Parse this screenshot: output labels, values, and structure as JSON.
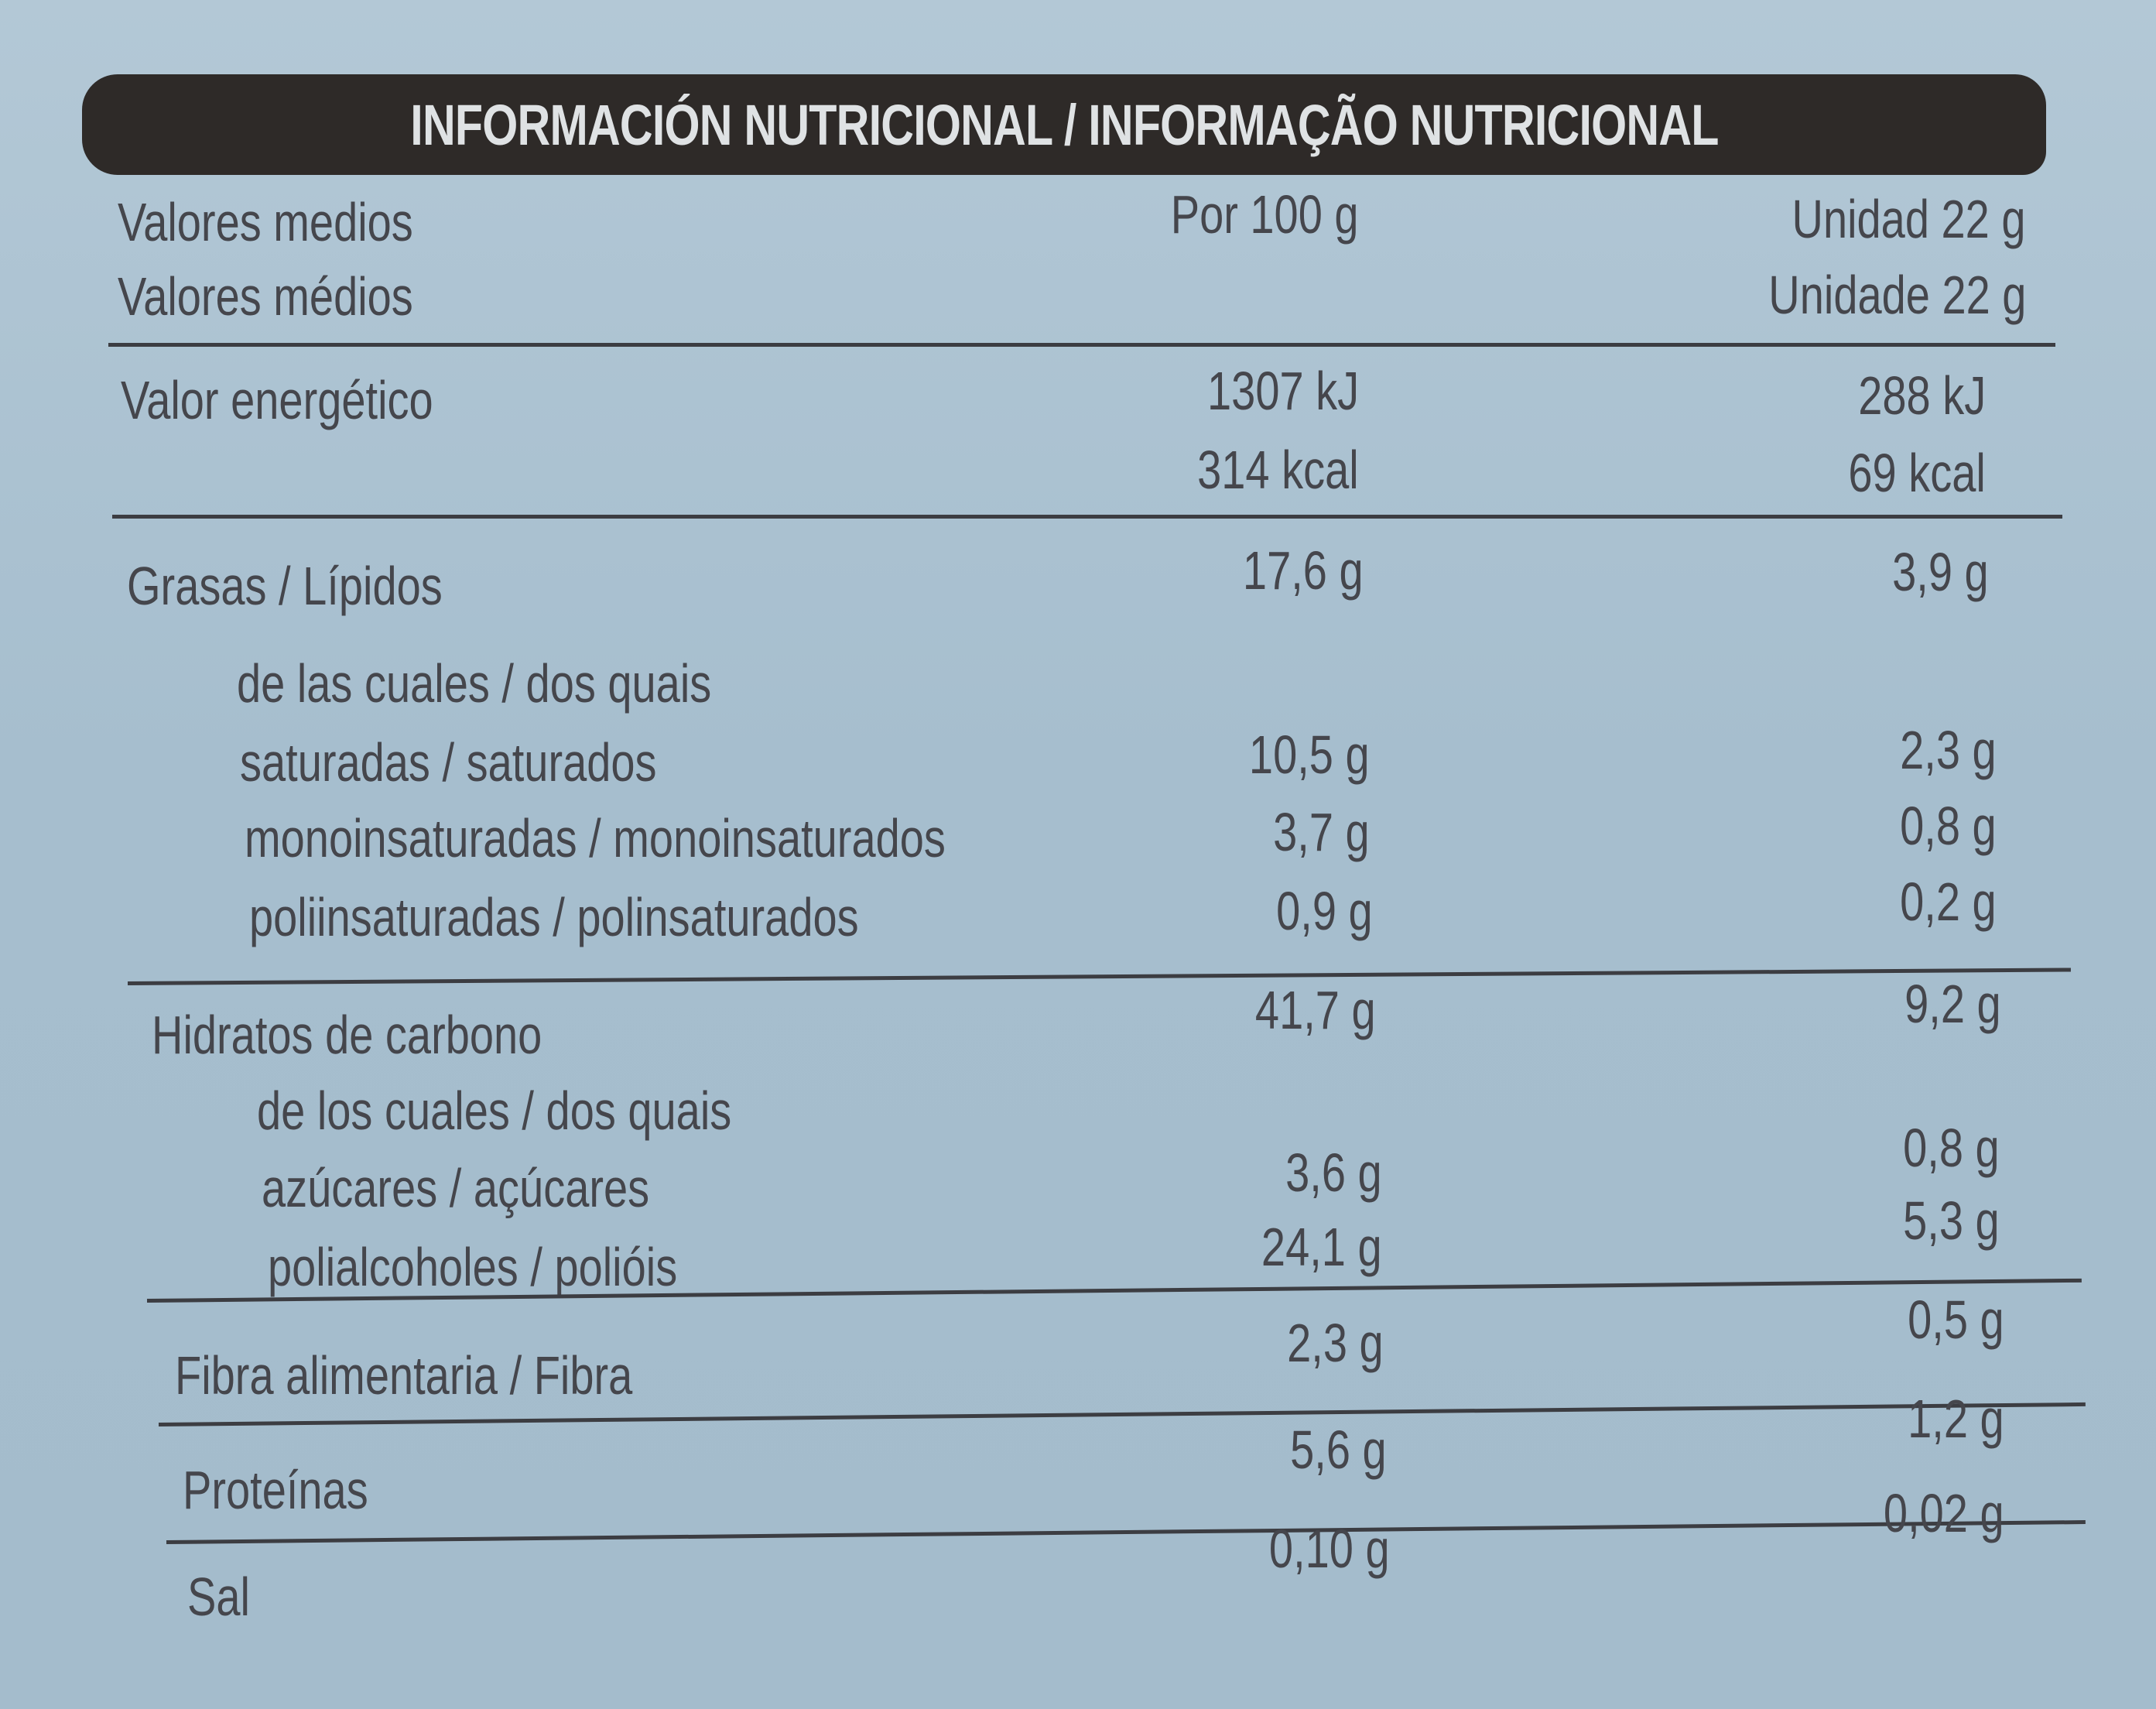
{
  "title": "INFORMACIÓN NUTRICIONAL / INFORMAÇÃO NUTRICIONAL",
  "header": {
    "label_es": "Valores medios",
    "label_pt": "Valores médios",
    "per100": "Por 100 g",
    "unit_es": "Unidad 22 g",
    "unit_pt": "Unidade 22 g"
  },
  "energy": {
    "label": "Valor energético",
    "per100_kj": "1307 kJ",
    "per100_kcal": "314 kcal",
    "unit_kj": "288 kJ",
    "unit_kcal": "69 kcal"
  },
  "fat": {
    "label": "Grasas / Lípidos",
    "per100": "17,6 g",
    "unit": "3,9 g",
    "of_which": "de las cuales / dos quais",
    "saturated": {
      "label": "saturadas / saturados",
      "per100": "10,5 g",
      "unit": "2,3 g"
    },
    "mono": {
      "label": "monoinsaturadas / monoinsaturados",
      "per100": "3,7 g",
      "unit": "0,8 g"
    },
    "poly": {
      "label": "poliinsaturadas / polinsaturados",
      "per100": "0,9 g",
      "unit": "0,2 g"
    }
  },
  "carbs": {
    "label": "Hidratos de carbono",
    "per100": "41,7 g",
    "unit": "9,2 g",
    "of_which": "de los cuales / dos quais",
    "sugars": {
      "label": "azúcares / açúcares",
      "per100": "3,6 g",
      "unit": "0,8 g"
    },
    "polyols": {
      "label": "polialcoholes / polióis",
      "per100": "24,1 g",
      "unit": "5,3 g"
    }
  },
  "fibre": {
    "label": "Fibra alimentaria / Fibra",
    "per100": "2,3 g",
    "unit": "0,5 g"
  },
  "protein": {
    "label": "Proteínas",
    "per100": "5,6 g",
    "unit": "1,2 g"
  },
  "salt": {
    "label": "Sal",
    "per100": "0,10 g",
    "unit": "0,02 g"
  },
  "colors": {
    "background": "#a9c0cf",
    "title_bar": "#2e2a28",
    "text": "#45464c"
  }
}
